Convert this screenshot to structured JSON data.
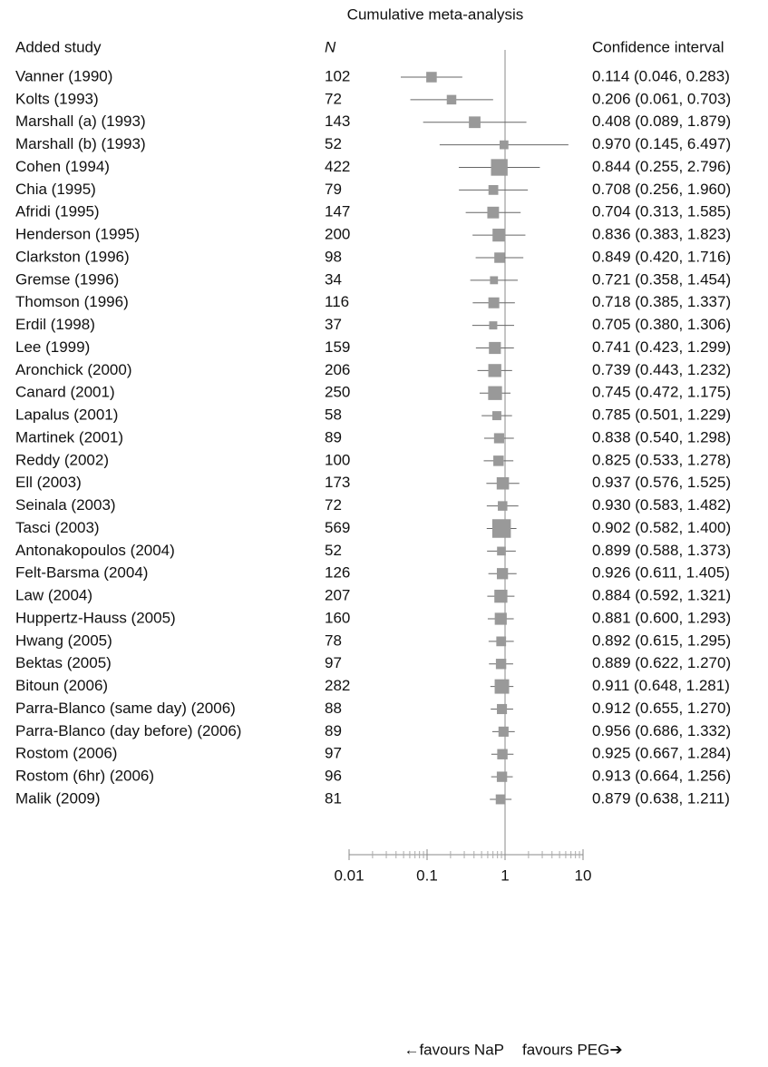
{
  "chart_data": {
    "type": "forest",
    "title": "Cumulative meta-analysis",
    "column_headers": {
      "study": "Added study",
      "n": "N",
      "ci": "Confidence interval"
    },
    "categories": [
      "Vanner (1990)",
      "Kolts (1993)",
      "Marshall (a) (1993)",
      "Marshall (b) (1993)",
      "Cohen (1994)",
      "Chia (1995)",
      "Afridi (1995)",
      "Henderson (1995)",
      "Clarkston (1996)",
      "Gremse (1996)",
      "Thomson (1996)",
      "Erdil (1998)",
      "Lee (1999)",
      "Aronchick (2000)",
      "Canard (2001)",
      "Lapalus (2001)",
      "Martinek (2001)",
      "Reddy (2002)",
      "Ell (2003)",
      "Seinala (2003)",
      "Tasci (2003)",
      "Antonakopoulos (2004)",
      "Felt-Barsma (2004)",
      "Law (2004)",
      "Huppertz-Hauss (2005)",
      "Hwang (2005)",
      "Bektas (2005)",
      "Bitoun (2006)",
      "Parra-Blanco (same day) (2006)",
      "Parra-Blanco (day before) (2006)",
      "Rostom (2006)",
      "Rostom (6hr) (2006)",
      "Malik (2009)"
    ],
    "n": [
      102,
      72,
      143,
      52,
      422,
      79,
      147,
      200,
      98,
      34,
      116,
      37,
      159,
      206,
      250,
      58,
      89,
      100,
      173,
      72,
      569,
      52,
      126,
      207,
      160,
      78,
      97,
      282,
      88,
      89,
      97,
      96,
      81
    ],
    "values": [
      0.114,
      0.206,
      0.408,
      0.97,
      0.844,
      0.708,
      0.704,
      0.836,
      0.849,
      0.721,
      0.718,
      0.705,
      0.741,
      0.739,
      0.745,
      0.785,
      0.838,
      0.825,
      0.937,
      0.93,
      0.902,
      0.899,
      0.926,
      0.884,
      0.881,
      0.892,
      0.889,
      0.911,
      0.912,
      0.956,
      0.925,
      0.913,
      0.879
    ],
    "lower": [
      0.046,
      0.061,
      0.089,
      0.145,
      0.255,
      0.256,
      0.313,
      0.383,
      0.42,
      0.358,
      0.385,
      0.38,
      0.423,
      0.443,
      0.472,
      0.501,
      0.54,
      0.533,
      0.576,
      0.583,
      0.582,
      0.588,
      0.611,
      0.592,
      0.6,
      0.615,
      0.622,
      0.648,
      0.655,
      0.686,
      0.667,
      0.664,
      0.638
    ],
    "upper": [
      0.283,
      0.703,
      1.879,
      6.497,
      2.796,
      1.96,
      1.585,
      1.823,
      1.716,
      1.454,
      1.337,
      1.306,
      1.299,
      1.232,
      1.175,
      1.229,
      1.298,
      1.278,
      1.525,
      1.482,
      1.4,
      1.373,
      1.405,
      1.321,
      1.293,
      1.295,
      1.27,
      1.281,
      1.27,
      1.332,
      1.284,
      1.256,
      1.211
    ],
    "value_labels": [
      "0.114 (0.046, 0.283)",
      "0.206 (0.061, 0.703)",
      "0.408 (0.089, 1.879)",
      "0.970 (0.145, 6.497)",
      "0.844 (0.255, 2.796)",
      "0.708 (0.256, 1.960)",
      "0.704 (0.313, 1.585)",
      "0.836 (0.383, 1.823)",
      "0.849 (0.420, 1.716)",
      "0.721 (0.358, 1.454)",
      "0.718 (0.385, 1.337)",
      "0.705 (0.380, 1.306)",
      "0.741 (0.423, 1.299)",
      "0.739 (0.443, 1.232)",
      "0.745 (0.472, 1.175)",
      "0.785 (0.501, 1.229)",
      "0.838 (0.540, 1.298)",
      "0.825 (0.533, 1.278)",
      "0.937 (0.576, 1.525)",
      "0.930 (0.583, 1.482)",
      "0.902 (0.582, 1.400)",
      "0.899 (0.588, 1.373)",
      "0.926 (0.611, 1.405)",
      "0.884 (0.592, 1.321)",
      "0.881 (0.600, 1.293)",
      "0.892 (0.615, 1.295)",
      "0.889 (0.622, 1.270)",
      "0.911 (0.648, 1.281)",
      "0.912 (0.655, 1.270)",
      "0.956 (0.686, 1.332)",
      "0.925 (0.667, 1.284)",
      "0.913 (0.664, 1.256)",
      "0.879 (0.638, 1.211)"
    ],
    "xlim": [
      0.01,
      10
    ],
    "xticks": [
      0.01,
      0.1,
      1,
      10
    ],
    "xminor_ticks": [
      0.02,
      0.03,
      0.04,
      0.05,
      0.06,
      0.07,
      0.08,
      0.09,
      0.2,
      0.3,
      0.4,
      0.5,
      0.6,
      0.7,
      0.8,
      0.9,
      2,
      3,
      4,
      5,
      6,
      7,
      8,
      9
    ],
    "log_x": true,
    "reference_value": 1,
    "annotations": [
      "←favours NaP",
      "favours PEG➔"
    ],
    "marker_color": "#999999",
    "line_color": "#666666"
  }
}
